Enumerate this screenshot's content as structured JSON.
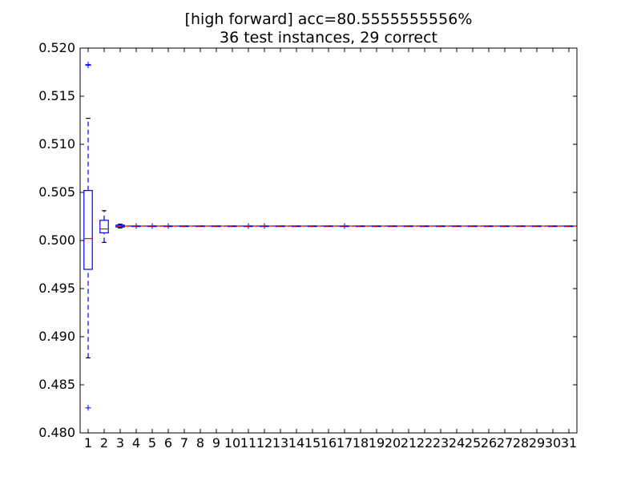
{
  "chart_data": {
    "type": "boxplot",
    "title": [
      "[high forward] acc=80.5555555556%",
      "36 test instances, 29 correct"
    ],
    "xlabel": "",
    "ylabel": "",
    "ylim": [
      0.48,
      0.52
    ],
    "yticks": [
      "0.480",
      "0.485",
      "0.490",
      "0.495",
      "0.500",
      "0.505",
      "0.510",
      "0.515",
      "0.520"
    ],
    "categories": [
      "1",
      "2",
      "3",
      "4",
      "5",
      "6",
      "7",
      "8",
      "9",
      "10",
      "11",
      "12",
      "13",
      "14",
      "15",
      "16",
      "17",
      "18",
      "19",
      "20",
      "21",
      "22",
      "23",
      "24",
      "25",
      "26",
      "27",
      "28",
      "29",
      "30",
      "31"
    ],
    "boxes": [
      {
        "whislo": 0.4878,
        "q1": 0.497,
        "med": 0.5002,
        "q3": 0.5052,
        "whishi": 0.5127,
        "fliers": [
          0.4826,
          0.5182,
          0.5183
        ]
      },
      {
        "whislo": 0.4998,
        "q1": 0.5008,
        "med": 0.5012,
        "q3": 0.5021,
        "whishi": 0.5031,
        "fliers": []
      },
      {
        "whislo": 0.5013,
        "q1": 0.5014,
        "med": 0.5015,
        "q3": 0.5016,
        "whishi": 0.5017,
        "fliers": []
      },
      {
        "whislo": 0.5015,
        "q1": 0.5015,
        "med": 0.5015,
        "q3": 0.5015,
        "whishi": 0.5015,
        "fliers": [
          0.5015
        ]
      },
      {
        "whislo": 0.5015,
        "q1": 0.5015,
        "med": 0.5015,
        "q3": 0.5015,
        "whishi": 0.5015,
        "fliers": [
          0.5015
        ]
      },
      {
        "whislo": 0.5015,
        "q1": 0.5015,
        "med": 0.5015,
        "q3": 0.5015,
        "whishi": 0.5015,
        "fliers": [
          0.5015
        ]
      },
      {
        "whislo": 0.5015,
        "q1": 0.5015,
        "med": 0.5015,
        "q3": 0.5015,
        "whishi": 0.5015,
        "fliers": []
      },
      {
        "whislo": 0.5015,
        "q1": 0.5015,
        "med": 0.5015,
        "q3": 0.5015,
        "whishi": 0.5015,
        "fliers": []
      },
      {
        "whislo": 0.5015,
        "q1": 0.5015,
        "med": 0.5015,
        "q3": 0.5015,
        "whishi": 0.5015,
        "fliers": []
      },
      {
        "whislo": 0.5015,
        "q1": 0.5015,
        "med": 0.5015,
        "q3": 0.5015,
        "whishi": 0.5015,
        "fliers": []
      },
      {
        "whislo": 0.5015,
        "q1": 0.5015,
        "med": 0.5015,
        "q3": 0.5015,
        "whishi": 0.5015,
        "fliers": [
          0.5015
        ]
      },
      {
        "whislo": 0.5015,
        "q1": 0.5015,
        "med": 0.5015,
        "q3": 0.5015,
        "whishi": 0.5015,
        "fliers": [
          0.5015
        ]
      },
      {
        "whislo": 0.5015,
        "q1": 0.5015,
        "med": 0.5015,
        "q3": 0.5015,
        "whishi": 0.5015,
        "fliers": []
      },
      {
        "whislo": 0.5015,
        "q1": 0.5015,
        "med": 0.5015,
        "q3": 0.5015,
        "whishi": 0.5015,
        "fliers": []
      },
      {
        "whislo": 0.5015,
        "q1": 0.5015,
        "med": 0.5015,
        "q3": 0.5015,
        "whishi": 0.5015,
        "fliers": []
      },
      {
        "whislo": 0.5015,
        "q1": 0.5015,
        "med": 0.5015,
        "q3": 0.5015,
        "whishi": 0.5015,
        "fliers": []
      },
      {
        "whislo": 0.5015,
        "q1": 0.5015,
        "med": 0.5015,
        "q3": 0.5015,
        "whishi": 0.5015,
        "fliers": [
          0.5015
        ]
      },
      {
        "whislo": 0.5015,
        "q1": 0.5015,
        "med": 0.5015,
        "q3": 0.5015,
        "whishi": 0.5015,
        "fliers": []
      },
      {
        "whislo": 0.5015,
        "q1": 0.5015,
        "med": 0.5015,
        "q3": 0.5015,
        "whishi": 0.5015,
        "fliers": []
      },
      {
        "whislo": 0.5015,
        "q1": 0.5015,
        "med": 0.5015,
        "q3": 0.5015,
        "whishi": 0.5015,
        "fliers": []
      },
      {
        "whislo": 0.5015,
        "q1": 0.5015,
        "med": 0.5015,
        "q3": 0.5015,
        "whishi": 0.5015,
        "fliers": []
      },
      {
        "whislo": 0.5015,
        "q1": 0.5015,
        "med": 0.5015,
        "q3": 0.5015,
        "whishi": 0.5015,
        "fliers": []
      },
      {
        "whislo": 0.5015,
        "q1": 0.5015,
        "med": 0.5015,
        "q3": 0.5015,
        "whishi": 0.5015,
        "fliers": []
      },
      {
        "whislo": 0.5015,
        "q1": 0.5015,
        "med": 0.5015,
        "q3": 0.5015,
        "whishi": 0.5015,
        "fliers": []
      },
      {
        "whislo": 0.5015,
        "q1": 0.5015,
        "med": 0.5015,
        "q3": 0.5015,
        "whishi": 0.5015,
        "fliers": []
      },
      {
        "whislo": 0.5015,
        "q1": 0.5015,
        "med": 0.5015,
        "q3": 0.5015,
        "whishi": 0.5015,
        "fliers": []
      },
      {
        "whislo": 0.5015,
        "q1": 0.5015,
        "med": 0.5015,
        "q3": 0.5015,
        "whishi": 0.5015,
        "fliers": []
      },
      {
        "whislo": 0.5015,
        "q1": 0.5015,
        "med": 0.5015,
        "q3": 0.5015,
        "whishi": 0.5015,
        "fliers": []
      },
      {
        "whislo": 0.5015,
        "q1": 0.5015,
        "med": 0.5015,
        "q3": 0.5015,
        "whishi": 0.5015,
        "fliers": []
      },
      {
        "whislo": 0.5015,
        "q1": 0.5015,
        "med": 0.5015,
        "q3": 0.5015,
        "whishi": 0.5015,
        "fliers": []
      },
      {
        "whislo": 0.5015,
        "q1": 0.5015,
        "med": 0.5015,
        "q3": 0.5015,
        "whishi": 0.5015,
        "fliers": []
      }
    ],
    "colors": {
      "box": "#0000ff",
      "median": "#ff0000",
      "whisker": "#0000ff",
      "cap": "#000000",
      "flier": "#0000ff",
      "frame": "#000000"
    },
    "grid": false,
    "legend": "none"
  }
}
